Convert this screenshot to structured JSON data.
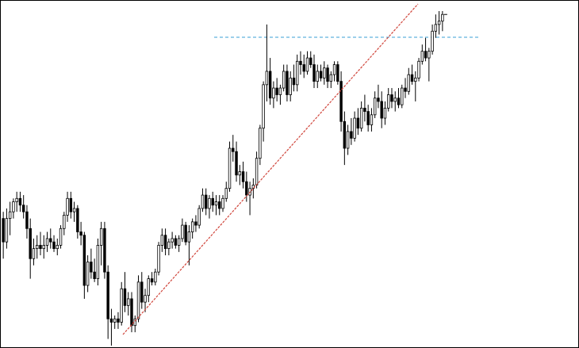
{
  "chart_data": {
    "type": "candlestick",
    "title": "",
    "grid": false,
    "x": {
      "start": 0,
      "end": 183
    },
    "y_range": [
      0,
      100
    ],
    "colors": {
      "background": "#ffffff",
      "bull_body": "#ffffff",
      "bear_body": "#000000",
      "wick": "#000000",
      "trendline": "#d0453b",
      "level_line": "#3a9fd6"
    },
    "candles": [
      {
        "o": 38,
        "h": 40,
        "l": 26,
        "c": 31
      },
      {
        "o": 31,
        "h": 41,
        "l": 29,
        "c": 38
      },
      {
        "o": 38,
        "h": 43,
        "l": 33,
        "c": 40
      },
      {
        "o": 40,
        "h": 44,
        "l": 38,
        "c": 43
      },
      {
        "o": 43,
        "h": 46,
        "l": 40,
        "c": 44
      },
      {
        "o": 44,
        "h": 46,
        "l": 40,
        "c": 42
      },
      {
        "o": 42,
        "h": 45,
        "l": 38,
        "c": 40
      },
      {
        "o": 40,
        "h": 42,
        "l": 32,
        "c": 35
      },
      {
        "o": 35,
        "h": 38,
        "l": 20,
        "c": 26
      },
      {
        "o": 26,
        "h": 32,
        "l": 24,
        "c": 29
      },
      {
        "o": 29,
        "h": 33,
        "l": 26,
        "c": 30
      },
      {
        "o": 30,
        "h": 34,
        "l": 27,
        "c": 29
      },
      {
        "o": 29,
        "h": 33,
        "l": 26,
        "c": 30
      },
      {
        "o": 30,
        "h": 34,
        "l": 28,
        "c": 32
      },
      {
        "o": 32,
        "h": 35,
        "l": 29,
        "c": 31
      },
      {
        "o": 31,
        "h": 33,
        "l": 28,
        "c": 29
      },
      {
        "o": 29,
        "h": 32,
        "l": 27,
        "c": 30
      },
      {
        "o": 30,
        "h": 36,
        "l": 29,
        "c": 35
      },
      {
        "o": 35,
        "h": 40,
        "l": 33,
        "c": 39
      },
      {
        "o": 39,
        "h": 46,
        "l": 37,
        "c": 44
      },
      {
        "o": 44,
        "h": 46,
        "l": 38,
        "c": 40
      },
      {
        "o": 40,
        "h": 43,
        "l": 37,
        "c": 41
      },
      {
        "o": 41,
        "h": 42,
        "l": 32,
        "c": 34
      },
      {
        "o": 34,
        "h": 37,
        "l": 30,
        "c": 33
      },
      {
        "o": 33,
        "h": 34,
        "l": 14,
        "c": 18
      },
      {
        "o": 18,
        "h": 27,
        "l": 16,
        "c": 25
      },
      {
        "o": 25,
        "h": 29,
        "l": 20,
        "c": 22
      },
      {
        "o": 22,
        "h": 26,
        "l": 19,
        "c": 20
      },
      {
        "o": 20,
        "h": 32,
        "l": 18,
        "c": 30
      },
      {
        "o": 30,
        "h": 37,
        "l": 24,
        "c": 35
      },
      {
        "o": 35,
        "h": 37,
        "l": 20,
        "c": 22
      },
      {
        "o": 22,
        "h": 24,
        "l": 2,
        "c": 8
      },
      {
        "o": 8,
        "h": 11,
        "l": 0,
        "c": 7
      },
      {
        "o": 7,
        "h": 9,
        "l": 5,
        "c": 8
      },
      {
        "o": 8,
        "h": 10,
        "l": 5,
        "c": 7
      },
      {
        "o": 7,
        "h": 19,
        "l": 6,
        "c": 17
      },
      {
        "o": 17,
        "h": 22,
        "l": 10,
        "c": 12
      },
      {
        "o": 12,
        "h": 16,
        "l": 9,
        "c": 14
      },
      {
        "o": 14,
        "h": 16,
        "l": 4,
        "c": 6
      },
      {
        "o": 6,
        "h": 9,
        "l": 4,
        "c": 8
      },
      {
        "o": 8,
        "h": 21,
        "l": 7,
        "c": 19
      },
      {
        "o": 19,
        "h": 22,
        "l": 11,
        "c": 13
      },
      {
        "o": 13,
        "h": 17,
        "l": 10,
        "c": 15
      },
      {
        "o": 15,
        "h": 21,
        "l": 13,
        "c": 20
      },
      {
        "o": 20,
        "h": 22,
        "l": 18,
        "c": 19
      },
      {
        "o": 19,
        "h": 23,
        "l": 18,
        "c": 22
      },
      {
        "o": 22,
        "h": 31,
        "l": 21,
        "c": 30
      },
      {
        "o": 30,
        "h": 35,
        "l": 28,
        "c": 33
      },
      {
        "o": 33,
        "h": 35,
        "l": 27,
        "c": 29
      },
      {
        "o": 29,
        "h": 32,
        "l": 27,
        "c": 31
      },
      {
        "o": 31,
        "h": 34,
        "l": 29,
        "c": 32
      },
      {
        "o": 32,
        "h": 33,
        "l": 29,
        "c": 30
      },
      {
        "o": 30,
        "h": 33,
        "l": 28,
        "c": 32
      },
      {
        "o": 32,
        "h": 38,
        "l": 31,
        "c": 36
      },
      {
        "o": 36,
        "h": 37,
        "l": 30,
        "c": 31
      },
      {
        "o": 31,
        "h": 36,
        "l": 24,
        "c": 34
      },
      {
        "o": 34,
        "h": 38,
        "l": 32,
        "c": 37
      },
      {
        "o": 37,
        "h": 39,
        "l": 34,
        "c": 36
      },
      {
        "o": 36,
        "h": 42,
        "l": 35,
        "c": 41
      },
      {
        "o": 41,
        "h": 47,
        "l": 40,
        "c": 45
      },
      {
        "o": 45,
        "h": 47,
        "l": 39,
        "c": 41
      },
      {
        "o": 41,
        "h": 45,
        "l": 38,
        "c": 44
      },
      {
        "o": 44,
        "h": 46,
        "l": 40,
        "c": 42
      },
      {
        "o": 42,
        "h": 45,
        "l": 39,
        "c": 43
      },
      {
        "o": 43,
        "h": 45,
        "l": 39,
        "c": 41
      },
      {
        "o": 41,
        "h": 45,
        "l": 40,
        "c": 44
      },
      {
        "o": 44,
        "h": 49,
        "l": 43,
        "c": 47
      },
      {
        "o": 47,
        "h": 61,
        "l": 46,
        "c": 59
      },
      {
        "o": 59,
        "h": 63,
        "l": 55,
        "c": 58
      },
      {
        "o": 58,
        "h": 61,
        "l": 49,
        "c": 51
      },
      {
        "o": 51,
        "h": 54,
        "l": 48,
        "c": 52
      },
      {
        "o": 52,
        "h": 55,
        "l": 47,
        "c": 49
      },
      {
        "o": 49,
        "h": 52,
        "l": 43,
        "c": 45
      },
      {
        "o": 45,
        "h": 49,
        "l": 39,
        "c": 47
      },
      {
        "o": 47,
        "h": 50,
        "l": 44,
        "c": 48
      },
      {
        "o": 48,
        "h": 58,
        "l": 47,
        "c": 56
      },
      {
        "o": 56,
        "h": 66,
        "l": 54,
        "c": 65
      },
      {
        "o": 65,
        "h": 79,
        "l": 61,
        "c": 78
      },
      {
        "o": 78,
        "h": 96,
        "l": 73,
        "c": 82
      },
      {
        "o": 82,
        "h": 86,
        "l": 72,
        "c": 74
      },
      {
        "o": 74,
        "h": 79,
        "l": 71,
        "c": 77
      },
      {
        "o": 77,
        "h": 80,
        "l": 73,
        "c": 75
      },
      {
        "o": 75,
        "h": 78,
        "l": 72,
        "c": 77
      },
      {
        "o": 77,
        "h": 84,
        "l": 76,
        "c": 82
      },
      {
        "o": 82,
        "h": 84,
        "l": 73,
        "c": 75
      },
      {
        "o": 75,
        "h": 82,
        "l": 73,
        "c": 80
      },
      {
        "o": 80,
        "h": 84,
        "l": 76,
        "c": 78
      },
      {
        "o": 78,
        "h": 87,
        "l": 76,
        "c": 85
      },
      {
        "o": 85,
        "h": 88,
        "l": 81,
        "c": 84
      },
      {
        "o": 84,
        "h": 87,
        "l": 80,
        "c": 82
      },
      {
        "o": 82,
        "h": 88,
        "l": 81,
        "c": 86
      },
      {
        "o": 86,
        "h": 88,
        "l": 83,
        "c": 84
      },
      {
        "o": 84,
        "h": 87,
        "l": 77,
        "c": 79
      },
      {
        "o": 79,
        "h": 84,
        "l": 77,
        "c": 82
      },
      {
        "o": 82,
        "h": 84,
        "l": 79,
        "c": 80
      },
      {
        "o": 80,
        "h": 85,
        "l": 78,
        "c": 83
      },
      {
        "o": 83,
        "h": 84,
        "l": 77,
        "c": 79
      },
      {
        "o": 79,
        "h": 82,
        "l": 77,
        "c": 81
      },
      {
        "o": 81,
        "h": 85,
        "l": 79,
        "c": 84
      },
      {
        "o": 84,
        "h": 85,
        "l": 78,
        "c": 79
      },
      {
        "o": 79,
        "h": 82,
        "l": 64,
        "c": 67
      },
      {
        "o": 67,
        "h": 70,
        "l": 54,
        "c": 59
      },
      {
        "o": 59,
        "h": 66,
        "l": 57,
        "c": 64
      },
      {
        "o": 64,
        "h": 68,
        "l": 60,
        "c": 62
      },
      {
        "o": 62,
        "h": 70,
        "l": 61,
        "c": 68
      },
      {
        "o": 68,
        "h": 71,
        "l": 63,
        "c": 65
      },
      {
        "o": 65,
        "h": 73,
        "l": 64,
        "c": 71
      },
      {
        "o": 71,
        "h": 75,
        "l": 67,
        "c": 70
      },
      {
        "o": 70,
        "h": 72,
        "l": 64,
        "c": 66
      },
      {
        "o": 66,
        "h": 71,
        "l": 64,
        "c": 69
      },
      {
        "o": 69,
        "h": 76,
        "l": 68,
        "c": 74
      },
      {
        "o": 74,
        "h": 78,
        "l": 71,
        "c": 73
      },
      {
        "o": 73,
        "h": 76,
        "l": 65,
        "c": 68
      },
      {
        "o": 68,
        "h": 73,
        "l": 66,
        "c": 71
      },
      {
        "o": 71,
        "h": 77,
        "l": 70,
        "c": 75
      },
      {
        "o": 75,
        "h": 77,
        "l": 71,
        "c": 73
      },
      {
        "o": 73,
        "h": 76,
        "l": 70,
        "c": 74
      },
      {
        "o": 74,
        "h": 77,
        "l": 71,
        "c": 72
      },
      {
        "o": 72,
        "h": 78,
        "l": 71,
        "c": 77
      },
      {
        "o": 77,
        "h": 80,
        "l": 74,
        "c": 76
      },
      {
        "o": 76,
        "h": 83,
        "l": 75,
        "c": 81
      },
      {
        "o": 81,
        "h": 84,
        "l": 78,
        "c": 79
      },
      {
        "o": 79,
        "h": 82,
        "l": 73,
        "c": 80
      },
      {
        "o": 80,
        "h": 86,
        "l": 79,
        "c": 85
      },
      {
        "o": 85,
        "h": 90,
        "l": 84,
        "c": 88
      },
      {
        "o": 88,
        "h": 92,
        "l": 85,
        "c": 86
      },
      {
        "o": 86,
        "h": 89,
        "l": 79,
        "c": 88
      },
      {
        "o": 88,
        "h": 96,
        "l": 87,
        "c": 94
      },
      {
        "o": 94,
        "h": 99,
        "l": 92,
        "c": 96
      },
      {
        "o": 96,
        "h": 100,
        "l": 93,
        "c": 97
      },
      {
        "o": 97,
        "h": 100,
        "l": 94,
        "c": 99
      }
    ]
  }
}
